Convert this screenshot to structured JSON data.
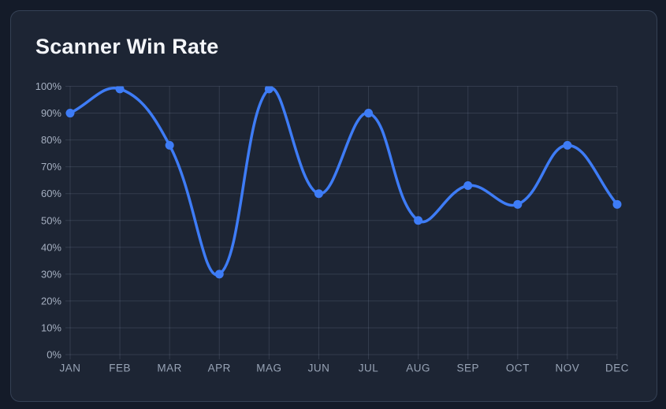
{
  "page": {
    "background": "#141b29"
  },
  "card": {
    "title": "Scanner Win Rate",
    "background": "#1d2534",
    "border_color": "rgba(118,140,172,0.28)"
  },
  "chart_data": {
    "type": "line",
    "title": "Scanner Win Rate",
    "categories": [
      "JAN",
      "FEB",
      "MAR",
      "APR",
      "MAG",
      "JUN",
      "JUL",
      "AUG",
      "SEP",
      "OCT",
      "NOV",
      "DEC"
    ],
    "series": [
      {
        "name": "Scanner Win Rate",
        "values": [
          90,
          99,
          78,
          30,
          99,
          60,
          90,
          50,
          63,
          56,
          78,
          56
        ]
      }
    ],
    "y_tick_labels": [
      "0%",
      "10%",
      "20%",
      "30%",
      "40%",
      "50%",
      "60%",
      "70%",
      "80%",
      "90%",
      "100%"
    ],
    "ylim": [
      0,
      100
    ],
    "grid": true,
    "legend": "none",
    "smooth": true,
    "tension": 0.4,
    "line_color": "#3e7cf6",
    "point_color": "#3e7cf6",
    "grid_color": "rgba(163,178,203,0.17)",
    "y_label_color": "#a6b0c1",
    "x_label_color": "#98a4b6"
  }
}
